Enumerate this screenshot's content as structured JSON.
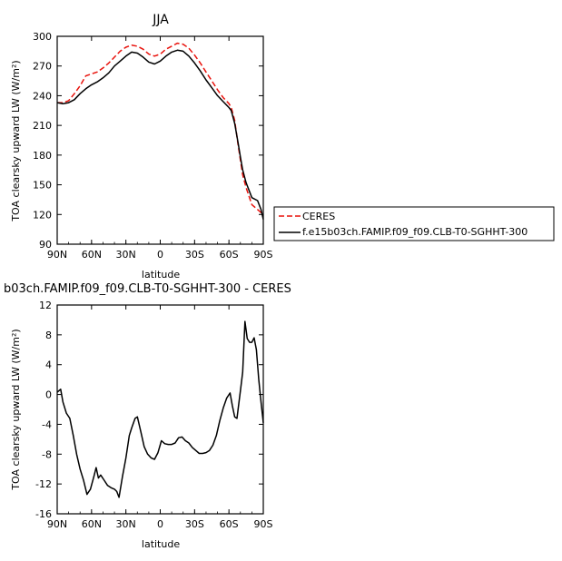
{
  "chart_data": [
    {
      "type": "line",
      "title": "JJA",
      "xlabel": "latitude",
      "ylabel": "TOA clearsky upward LW (W/m²)",
      "xlim": [
        90,
        -90
      ],
      "ylim": [
        90,
        300
      ],
      "xticks": [
        90,
        60,
        30,
        0,
        -30,
        -60,
        -90
      ],
      "xtick_labels": [
        "90N",
        "60N",
        "30N",
        "0",
        "30S",
        "60S",
        "90S"
      ],
      "yticks": [
        90,
        120,
        150,
        180,
        210,
        240,
        270,
        300
      ],
      "ytick_labels": [
        "90",
        "120",
        "150",
        "180",
        "210",
        "240",
        "270",
        "300"
      ],
      "legend_position": "right",
      "series": [
        {
          "name": "CERES",
          "color": "#e8120c",
          "dash": "dashed",
          "x": [
            90,
            85,
            80,
            75,
            70,
            65,
            60,
            55,
            50,
            45,
            40,
            35,
            30,
            25,
            20,
            15,
            10,
            5,
            0,
            -5,
            -10,
            -15,
            -20,
            -25,
            -30,
            -35,
            -40,
            -45,
            -50,
            -55,
            -60,
            -62,
            -65,
            -68,
            -70,
            -72,
            -75,
            -80,
            -85,
            -90
          ],
          "y": [
            233,
            233,
            235,
            242,
            250,
            260,
            262,
            264,
            268,
            273,
            279,
            285,
            289,
            291,
            290,
            287,
            282,
            280,
            282,
            287,
            290,
            293,
            292,
            288,
            281,
            273,
            264,
            255,
            246,
            238,
            232,
            228,
            215,
            190,
            175,
            160,
            147,
            130,
            125,
            120
          ]
        },
        {
          "name": "f.e15b03ch.FAMIP.f09_f09.CLB-T0-SGHHT-300",
          "color": "#000000",
          "dash": "solid",
          "x": [
            90,
            85,
            80,
            75,
            70,
            65,
            60,
            55,
            50,
            45,
            40,
            35,
            30,
            25,
            20,
            15,
            10,
            5,
            0,
            -5,
            -10,
            -15,
            -20,
            -25,
            -30,
            -35,
            -40,
            -45,
            -50,
            -55,
            -60,
            -62,
            -65,
            -68,
            -70,
            -72,
            -75,
            -80,
            -85,
            -88,
            -90
          ],
          "y": [
            233,
            232,
            233,
            236,
            242,
            247,
            251,
            254,
            258,
            263,
            270,
            275,
            280,
            284,
            283,
            279,
            274,
            272,
            275,
            280,
            284,
            286,
            285,
            280,
            273,
            265,
            256,
            248,
            240,
            234,
            228,
            225,
            212,
            192,
            178,
            165,
            152,
            137,
            134,
            125,
            115
          ]
        }
      ]
    },
    {
      "type": "line",
      "title": "b03ch.FAMIP.f09_f09.CLB-T0-SGHHT-300 - CERES",
      "xlabel": "latitude",
      "ylabel": "TOA clearsky upward LW (W/m²)",
      "xlim": [
        90,
        -90
      ],
      "ylim": [
        -16,
        12
      ],
      "xticks": [
        90,
        60,
        30,
        0,
        -30,
        -60,
        -90
      ],
      "xtick_labels": [
        "90N",
        "60N",
        "30N",
        "0",
        "30S",
        "60S",
        "90S"
      ],
      "yticks": [
        -16,
        -12,
        -8,
        -4,
        0,
        4,
        8,
        12
      ],
      "ytick_labels": [
        "-16",
        "-12",
        "-8",
        "-4",
        "0",
        "4",
        "8",
        "12"
      ],
      "series": [
        {
          "color": "#000000",
          "dash": "solid",
          "x": [
            90,
            87,
            85,
            82,
            79,
            76,
            73,
            70,
            67,
            64,
            61,
            58,
            56,
            54,
            52,
            49,
            46,
            43,
            40,
            38,
            36,
            33,
            30,
            27,
            25,
            22,
            20,
            17,
            14,
            11,
            8,
            5,
            2,
            -1,
            -4,
            -7,
            -10,
            -13,
            -16,
            -19,
            -22,
            -25,
            -28,
            -31,
            -34,
            -37,
            -40,
            -43,
            -46,
            -49,
            -52,
            -55,
            -58,
            -61,
            -63,
            -65,
            -67,
            -70,
            -72,
            -74,
            -76,
            -78,
            -80,
            -82,
            -84,
            -86,
            -88,
            -90
          ],
          "y": [
            0.3,
            0.7,
            -1.0,
            -2.5,
            -3.2,
            -5.5,
            -8.0,
            -10.0,
            -11.5,
            -13.4,
            -12.7,
            -11.0,
            -9.8,
            -11.2,
            -10.8,
            -11.5,
            -12.2,
            -12.5,
            -12.7,
            -13.0,
            -13.8,
            -11.0,
            -8.5,
            -5.5,
            -4.5,
            -3.2,
            -3.0,
            -5.0,
            -7.0,
            -8.0,
            -8.5,
            -8.7,
            -7.8,
            -6.2,
            -6.6,
            -6.7,
            -6.7,
            -6.5,
            -5.8,
            -5.7,
            -6.2,
            -6.5,
            -7.1,
            -7.5,
            -7.9,
            -7.9,
            -7.8,
            -7.5,
            -6.8,
            -5.5,
            -3.5,
            -1.8,
            -0.5,
            0.2,
            -1.5,
            -3.0,
            -3.2,
            0.5,
            3.0,
            9.8,
            7.5,
            7.0,
            7.0,
            7.6,
            6.0,
            2.0,
            -1.0,
            -3.8
          ]
        }
      ]
    }
  ]
}
